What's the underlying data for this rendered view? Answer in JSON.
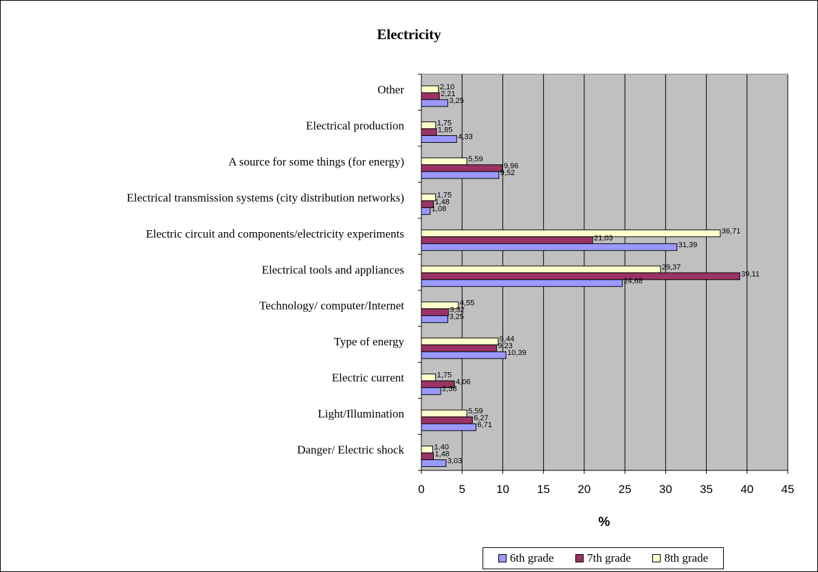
{
  "chart_data": {
    "type": "bar",
    "orientation": "horizontal",
    "title": "Electricity",
    "xlabel": "%",
    "ylabel": "",
    "xlim": [
      0,
      45
    ],
    "xticks": [
      "0",
      "5",
      "10",
      "15",
      "20",
      "25",
      "30",
      "35",
      "40",
      "45"
    ],
    "grid": true,
    "legend_position": "bottom",
    "categories": [
      "Other",
      "Electrical production",
      "A source for some things (for energy)",
      "Electrical transmission systems (city distribution networks)",
      "Electric circuit and components/electricity experiments",
      "Electrical tools and appliances",
      "Technology/ computer/Internet",
      "Type of energy",
      "Electric current",
      "Light/Illumination",
      "Danger/ Electric shock"
    ],
    "series": [
      {
        "name": "6th grade",
        "color": "#9999ff",
        "values": [
          3.25,
          4.33,
          9.52,
          1.08,
          31.39,
          24.68,
          3.25,
          10.39,
          2.38,
          6.71,
          3.03
        ],
        "labels": [
          "3,25",
          "4,33",
          "9,52",
          "1,08",
          "31,39",
          "24,68",
          "3,25",
          "10,39",
          "2,38",
          "6,71",
          "3,03"
        ]
      },
      {
        "name": "7th grade",
        "color": "#993366",
        "values": [
          2.21,
          1.85,
          9.96,
          1.48,
          21.03,
          39.11,
          3.32,
          9.23,
          4.06,
          6.27,
          1.48
        ],
        "labels": [
          "2,21",
          "1,85",
          "9,96",
          "1,48",
          "21,03",
          "39,11",
          "3,32",
          "9,23",
          "4,06",
          "6,27",
          "1,48"
        ]
      },
      {
        "name": "8th grade",
        "color": "#ffffcc",
        "values": [
          2.1,
          1.75,
          5.59,
          1.75,
          36.71,
          29.37,
          4.55,
          9.44,
          1.75,
          5.59,
          1.4
        ],
        "labels": [
          "2,10",
          "1,75",
          "5,59",
          "1,75",
          "36,71",
          "29,37",
          "4,55",
          "9,44",
          "1,75",
          "5,59",
          "1,40"
        ]
      }
    ],
    "plot_background": "#c0c0c0"
  }
}
